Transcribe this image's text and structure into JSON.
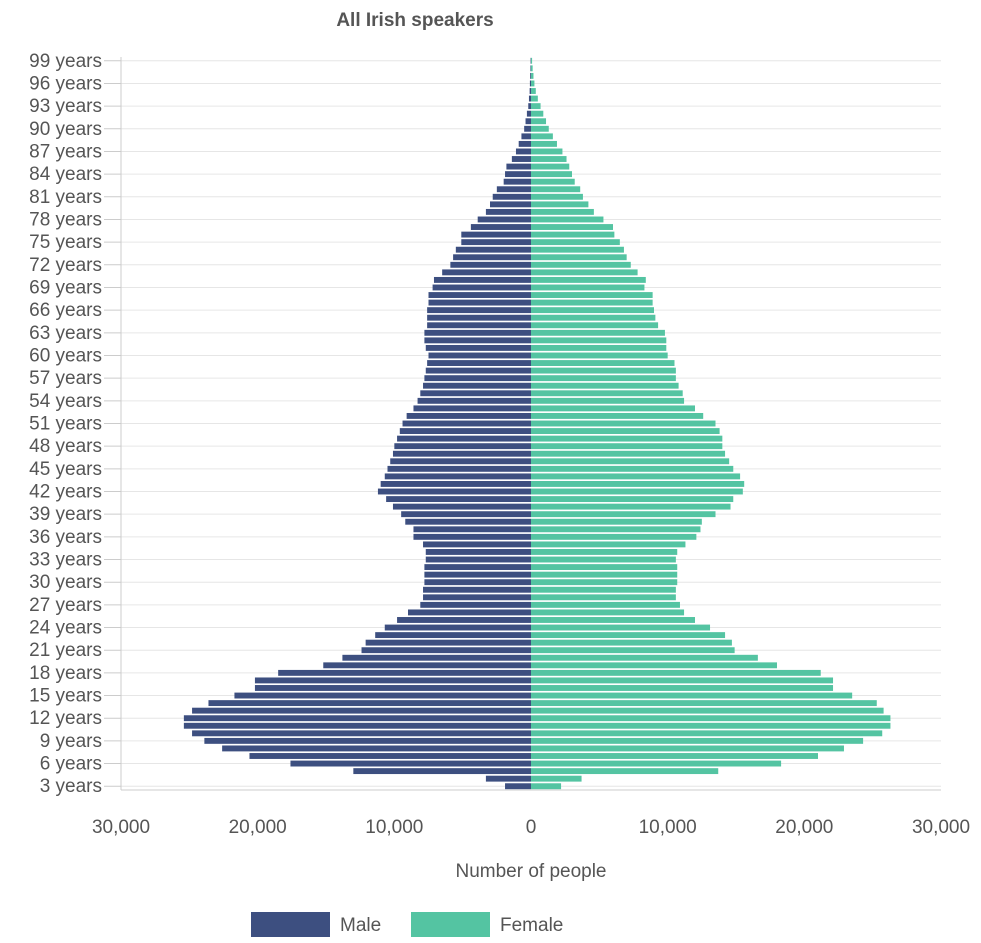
{
  "chart_data": {
    "type": "bar",
    "orientation": "horizontal",
    "title": "All Irish speakers",
    "xlabel": "Number of people",
    "ylabel": "",
    "xlim": [
      -30000,
      30000
    ],
    "x_tick_values": [
      -30000,
      -20000,
      -10000,
      0,
      10000,
      20000,
      30000
    ],
    "x_tick_labels": [
      "30,000",
      "20,000",
      "10,000",
      "0",
      "10,000",
      "20,000",
      "30,000"
    ],
    "grid": true,
    "legend_position": "bottom",
    "ages": [
      3,
      4,
      5,
      6,
      7,
      8,
      9,
      10,
      11,
      12,
      13,
      14,
      15,
      16,
      17,
      18,
      19,
      20,
      21,
      22,
      23,
      24,
      25,
      26,
      27,
      28,
      29,
      30,
      31,
      32,
      33,
      34,
      35,
      36,
      37,
      38,
      39,
      40,
      41,
      42,
      43,
      44,
      45,
      46,
      47,
      48,
      49,
      50,
      51,
      52,
      53,
      54,
      55,
      56,
      57,
      58,
      59,
      60,
      61,
      62,
      63,
      64,
      65,
      66,
      67,
      68,
      69,
      70,
      71,
      72,
      73,
      74,
      75,
      76,
      77,
      78,
      79,
      80,
      81,
      82,
      83,
      84,
      85,
      86,
      87,
      88,
      89,
      90,
      91,
      92,
      93,
      94,
      95,
      96,
      97,
      98,
      99
    ],
    "age_suffix": " years",
    "age_label_step": 3,
    "series": [
      {
        "name": "Male",
        "color": "#3d4f80",
        "values": [
          1900,
          3300,
          13000,
          17600,
          20600,
          22600,
          23900,
          24800,
          25400,
          25400,
          24800,
          23600,
          21700,
          20200,
          20200,
          18500,
          15200,
          13800,
          12400,
          12100,
          11400,
          10700,
          9800,
          9000,
          8100,
          7900,
          7900,
          7800,
          7800,
          7800,
          7700,
          7700,
          7900,
          8600,
          8600,
          9200,
          9500,
          10100,
          10600,
          11200,
          11000,
          10700,
          10500,
          10300,
          10100,
          10000,
          9800,
          9600,
          9400,
          9100,
          8600,
          8300,
          8100,
          7900,
          7800,
          7700,
          7600,
          7500,
          7700,
          7800,
          7800,
          7600,
          7600,
          7600,
          7500,
          7500,
          7200,
          7100,
          6500,
          5900,
          5700,
          5500,
          5100,
          5100,
          4400,
          3900,
          3300,
          3000,
          2800,
          2500,
          2000,
          1900,
          1800,
          1400,
          1100,
          900,
          700,
          500,
          400,
          300,
          200,
          150,
          100,
          80,
          60,
          40,
          30
        ]
      },
      {
        "name": "Female",
        "color": "#54c4a2",
        "values": [
          2200,
          3700,
          13700,
          18300,
          21000,
          22900,
          24300,
          25700,
          26300,
          26300,
          25800,
          25300,
          23500,
          22100,
          22100,
          21200,
          18000,
          16600,
          14900,
          14700,
          14200,
          13100,
          12000,
          11200,
          10900,
          10600,
          10600,
          10700,
          10700,
          10700,
          10600,
          10700,
          11300,
          12100,
          12400,
          12500,
          13500,
          14600,
          14800,
          15500,
          15600,
          15300,
          14800,
          14500,
          14200,
          14000,
          14000,
          13800,
          13500,
          12600,
          12000,
          11200,
          11100,
          10800,
          10600,
          10600,
          10500,
          10000,
          9900,
          9900,
          9800,
          9300,
          9100,
          9000,
          8900,
          8900,
          8300,
          8400,
          7800,
          7300,
          7000,
          6800,
          6500,
          6100,
          6000,
          5300,
          4600,
          4200,
          3800,
          3600,
          3200,
          3000,
          2800,
          2600,
          2300,
          1900,
          1600,
          1300,
          1100,
          900,
          700,
          500,
          350,
          250,
          180,
          120,
          80
        ]
      }
    ]
  }
}
